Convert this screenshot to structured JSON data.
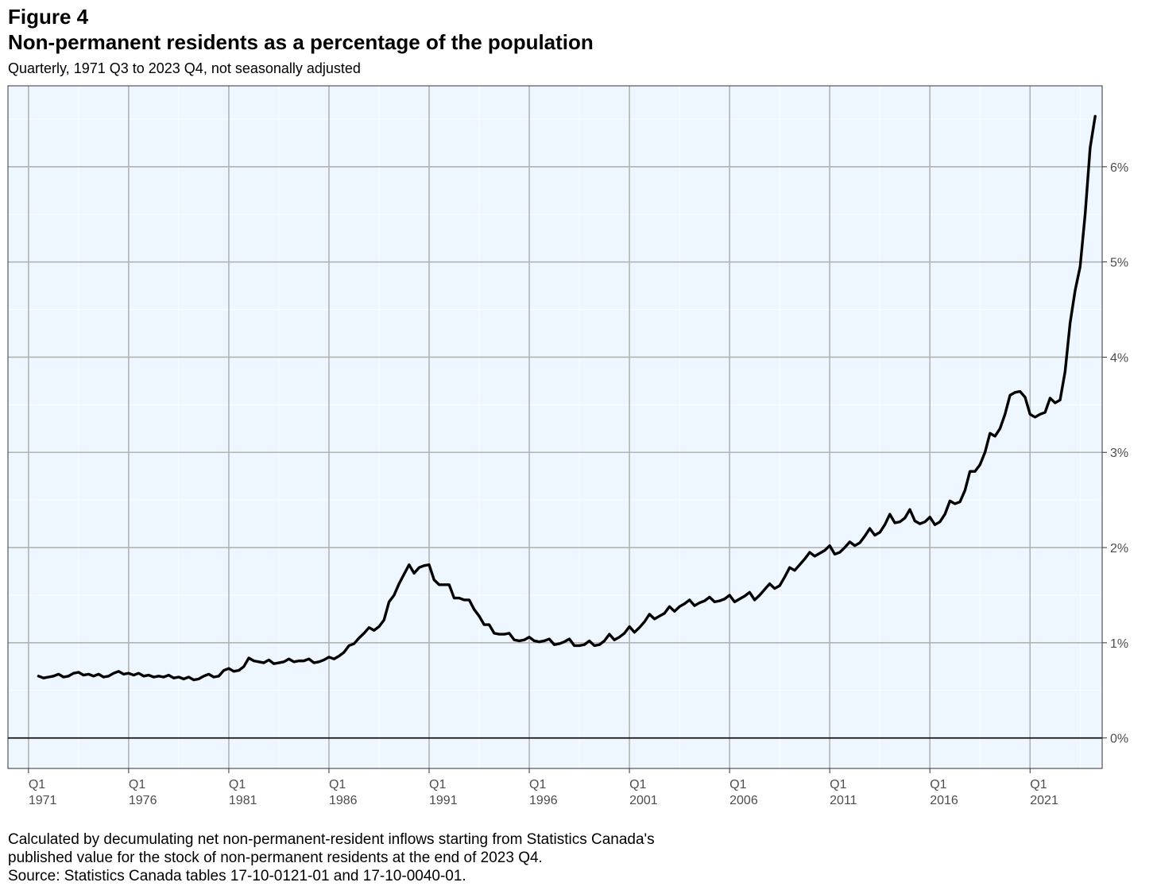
{
  "figure_label": "Figure 4",
  "title": "Non-permanent residents as a percentage of the population",
  "subtitle": "Quarterly, 1971 Q3 to 2023 Q4, not seasonally adjusted",
  "notes": [
    "Calculated by decumulating net non-permanent-resident inflows starting from Statistics Canada's",
    "published value for the stock of non-permanent residents at the end of 2023 Q4.",
    "Source: Statistics Canada tables 17-10-0121-01 and 17-10-0040-01."
  ],
  "colors": {
    "panel_bg": "#eef7ff",
    "grid": "#b3b3b3",
    "line": "#000000",
    "zero_line": "#000000",
    "tick_text": "#4d4d4d"
  },
  "chart_data": {
    "type": "line",
    "title": "Non-permanent residents as a percentage of the population",
    "xlabel": "",
    "ylabel": "",
    "x_tick_labels": [
      {
        "quarter": "Q1",
        "year": "1971"
      },
      {
        "quarter": "Q1",
        "year": "1976"
      },
      {
        "quarter": "Q1",
        "year": "1981"
      },
      {
        "quarter": "Q1",
        "year": "1986"
      },
      {
        "quarter": "Q1",
        "year": "1991"
      },
      {
        "quarter": "Q1",
        "year": "1996"
      },
      {
        "quarter": "Q1",
        "year": "2001"
      },
      {
        "quarter": "Q1",
        "year": "2006"
      },
      {
        "quarter": "Q1",
        "year": "2011"
      },
      {
        "quarter": "Q1",
        "year": "2016"
      },
      {
        "quarter": "Q1",
        "year": "2021"
      }
    ],
    "y_tick_labels": [
      "0%",
      "1%",
      "2%",
      "3%",
      "4%",
      "5%",
      "6%"
    ],
    "y_ticks": [
      0,
      1,
      2,
      3,
      4,
      5,
      6
    ],
    "xlim": [
      "1971 Q1",
      "2024 Q4"
    ],
    "ylim": [
      -0.32,
      6.85
    ],
    "y_axis_side": "right",
    "grid": true,
    "legend": "none",
    "series": [
      {
        "start": "1971 Q3",
        "frequency": "quarterly",
        "values": [
          0.65,
          0.63,
          0.64,
          0.65,
          0.67,
          0.64,
          0.65,
          0.68,
          0.69,
          0.66,
          0.67,
          0.65,
          0.67,
          0.64,
          0.65,
          0.68,
          0.7,
          0.67,
          0.68,
          0.66,
          0.68,
          0.65,
          0.66,
          0.64,
          0.65,
          0.64,
          0.66,
          0.63,
          0.64,
          0.62,
          0.64,
          0.61,
          0.62,
          0.65,
          0.67,
          0.64,
          0.65,
          0.71,
          0.73,
          0.7,
          0.71,
          0.75,
          0.84,
          0.81,
          0.8,
          0.79,
          0.82,
          0.78,
          0.79,
          0.8,
          0.83,
          0.8,
          0.81,
          0.81,
          0.83,
          0.79,
          0.8,
          0.82,
          0.85,
          0.83,
          0.86,
          0.9,
          0.97,
          0.99,
          1.05,
          1.1,
          1.16,
          1.13,
          1.17,
          1.24,
          1.43,
          1.5,
          1.62,
          1.72,
          1.82,
          1.73,
          1.79,
          1.81,
          1.82,
          1.66,
          1.61,
          1.61,
          1.61,
          1.47,
          1.47,
          1.45,
          1.45,
          1.35,
          1.28,
          1.19,
          1.19,
          1.1,
          1.09,
          1.09,
          1.1,
          1.03,
          1.02,
          1.03,
          1.06,
          1.02,
          1.01,
          1.02,
          1.04,
          0.98,
          0.99,
          1.01,
          1.04,
          0.97,
          0.97,
          0.98,
          1.02,
          0.97,
          0.98,
          1.02,
          1.09,
          1.03,
          1.06,
          1.1,
          1.17,
          1.11,
          1.16,
          1.22,
          1.3,
          1.25,
          1.28,
          1.31,
          1.38,
          1.33,
          1.38,
          1.41,
          1.45,
          1.39,
          1.42,
          1.44,
          1.48,
          1.43,
          1.44,
          1.46,
          1.5,
          1.43,
          1.46,
          1.49,
          1.53,
          1.45,
          1.5,
          1.56,
          1.62,
          1.57,
          1.6,
          1.69,
          1.79,
          1.76,
          1.82,
          1.88,
          1.95,
          1.91,
          1.94,
          1.97,
          2.02,
          1.93,
          1.95,
          2.0,
          2.06,
          2.02,
          2.05,
          2.12,
          2.2,
          2.13,
          2.16,
          2.24,
          2.35,
          2.26,
          2.27,
          2.31,
          2.4,
          2.28,
          2.25,
          2.27,
          2.32,
          2.24,
          2.27,
          2.35,
          2.49,
          2.46,
          2.48,
          2.6,
          2.8,
          2.8,
          2.87,
          3.0,
          3.2,
          3.17,
          3.25,
          3.4,
          3.6,
          3.63,
          3.64,
          3.58,
          3.4,
          3.37,
          3.4,
          3.42,
          3.57,
          3.52,
          3.55,
          3.85,
          4.36,
          4.7,
          4.95,
          5.5,
          6.2,
          6.53
        ]
      }
    ]
  }
}
